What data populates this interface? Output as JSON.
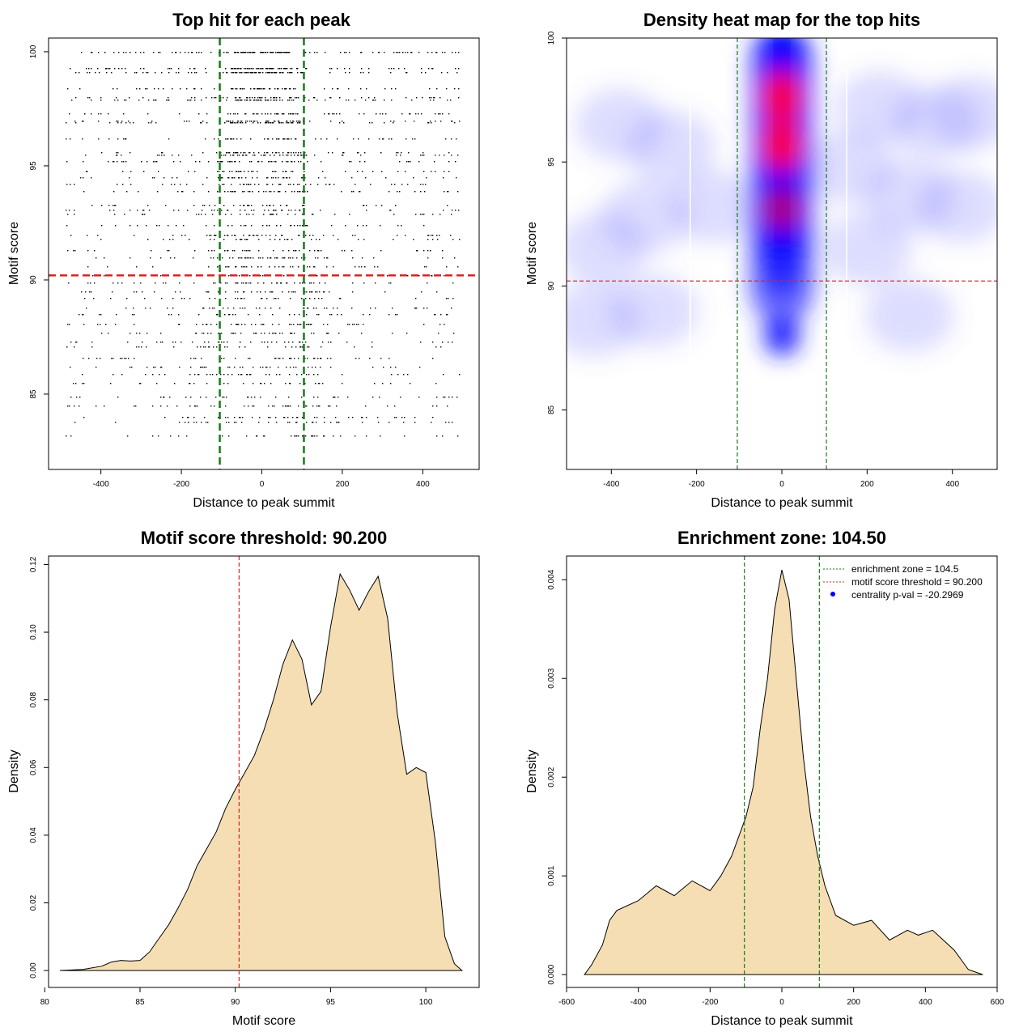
{
  "chart_data": [
    {
      "type": "scatter",
      "title": "Top hit for each peak",
      "xlabel": "Distance to peak summit",
      "ylabel": "Motif score",
      "xlim": [
        -530,
        540
      ],
      "ylim": [
        81.7,
        100.6
      ],
      "xticks": [
        -400,
        -200,
        0,
        200,
        400
      ],
      "yticks": [
        85,
        90,
        95,
        100
      ],
      "vlines": {
        "values": [
          -104.5,
          104.5
        ],
        "color": "#1a7a1a",
        "style": "dashed"
      },
      "hlines": {
        "values": [
          90.2
        ],
        "color": "#e02020",
        "style": "dashed"
      },
      "score_levels": [
        100,
        99.3,
        99.1,
        98.4,
        98.0,
        97.9,
        97.3,
        97.0,
        96.9,
        96.2,
        95.6,
        95.5,
        95.2,
        94.8,
        94.5,
        94.2,
        93.9,
        93.3,
        93.1,
        92.9,
        92.4,
        92.0,
        91.8,
        91.3,
        91.0,
        90.6,
        90.2,
        89.9,
        89.5,
        89.2,
        88.8,
        88.5,
        88.1,
        87.7,
        87.3,
        87.1,
        86.6,
        86.2,
        85.9,
        85.5,
        84.9,
        84.5,
        84.0,
        83.8,
        83.2
      ],
      "distance_range": [
        -490,
        490
      ],
      "grid": false
    },
    {
      "type": "heatmap",
      "title": "Density heat map for the top hits",
      "xlabel": "Distance to peak summit",
      "ylabel": "Motif score",
      "xlim": [
        -505,
        505
      ],
      "ylim": [
        82.6,
        100
      ],
      "xticks": [
        -400,
        -200,
        0,
        200,
        400
      ],
      "yticks": [
        85,
        90,
        95,
        100
      ],
      "colors": [
        "#ffffff",
        "#0000ff",
        "#ff0000"
      ],
      "hotspots": [
        {
          "x": 0,
          "y": 97.6,
          "intensity": 1.0
        },
        {
          "x": 0,
          "y": 95.7,
          "intensity": 1.0
        },
        {
          "x": 0,
          "y": 93.1,
          "intensity": 0.8
        },
        {
          "x": 0,
          "y": 90.5,
          "intensity": 0.55
        },
        {
          "x": 0,
          "y": 88.0,
          "intensity": 0.3
        }
      ],
      "vlines": {
        "values": [
          -104.5,
          104.5
        ],
        "color": "#1a7a1a",
        "style": "dashed"
      },
      "hlines": {
        "values": [
          90.2
        ],
        "color": "#e02020",
        "style": "dashed"
      },
      "grid": false
    },
    {
      "type": "area",
      "title": "Motif score threshold: 90.200",
      "xlabel": "Motif score",
      "ylabel": "Density",
      "xlim": [
        80.2,
        102.8
      ],
      "ylim": [
        -0.005,
        0.1225
      ],
      "xticks": [
        80,
        85,
        90,
        95,
        100
      ],
      "yticks": [
        0.0,
        0.02,
        0.04,
        0.06,
        0.08,
        0.1,
        0.12
      ],
      "ytick_labels": [
        "0.00",
        "0.02",
        "0.04",
        "0.06",
        "0.08",
        "0.10",
        "0.12"
      ],
      "x": [
        80.8,
        82.0,
        83.0,
        83.5,
        84.0,
        84.5,
        85.0,
        85.5,
        86.0,
        86.5,
        87.0,
        87.5,
        88.0,
        88.5,
        89.0,
        89.5,
        90.0,
        90.5,
        91.0,
        91.5,
        92.0,
        92.5,
        93.0,
        93.5,
        94.0,
        94.5,
        95.0,
        95.5,
        96.0,
        96.5,
        97.0,
        97.5,
        98.0,
        98.5,
        99.0,
        99.5,
        100.0,
        100.5,
        101.0,
        101.5,
        101.9
      ],
      "y": [
        0.0,
        0.0003,
        0.0013,
        0.0025,
        0.003,
        0.0028,
        0.003,
        0.0055,
        0.0095,
        0.0135,
        0.0185,
        0.024,
        0.031,
        0.036,
        0.041,
        0.048,
        0.0535,
        0.0585,
        0.0635,
        0.071,
        0.08,
        0.0905,
        0.0977,
        0.092,
        0.0785,
        0.0825,
        0.1015,
        0.1172,
        0.1125,
        0.1065,
        0.112,
        0.1165,
        0.104,
        0.076,
        0.058,
        0.06,
        0.0585,
        0.038,
        0.01,
        0.002,
        0.0
      ],
      "fill": "#f5deb3",
      "vlines": {
        "values": [
          90.2
        ],
        "color": "#e02020",
        "style": "dashed"
      },
      "grid": false
    },
    {
      "type": "area",
      "title": "Enrichment zone: 104.50",
      "xlabel": "Distance to peak summit",
      "ylabel": "Density",
      "xlim": [
        -600,
        600
      ],
      "ylim": [
        -0.00013,
        0.00424
      ],
      "xticks": [
        -600,
        -400,
        -200,
        0,
        200,
        400,
        600
      ],
      "yticks": [
        0.0,
        0.001,
        0.002,
        0.003,
        0.004
      ],
      "ytick_labels": [
        "0.000",
        "0.001",
        "0.002",
        "0.003",
        "0.004"
      ],
      "x": [
        -550,
        -530,
        -500,
        -480,
        -460,
        -400,
        -350,
        -300,
        -250,
        -200,
        -170,
        -140,
        -120,
        -100,
        -80,
        -60,
        -40,
        -20,
        0,
        20,
        40,
        60,
        80,
        100,
        120,
        150,
        200,
        250,
        300,
        350,
        380,
        420,
        450,
        480,
        520,
        560
      ],
      "y": [
        0.0,
        0.0001,
        0.0003,
        0.00055,
        0.00065,
        0.00075,
        0.0009,
        0.0008,
        0.00095,
        0.00085,
        0.001,
        0.0012,
        0.0014,
        0.0016,
        0.0019,
        0.0025,
        0.003,
        0.0037,
        0.0041,
        0.0038,
        0.003,
        0.0022,
        0.0016,
        0.0012,
        0.0009,
        0.0006,
        0.0005,
        0.00055,
        0.00035,
        0.00045,
        0.0004,
        0.00045,
        0.00035,
        0.00025,
        5e-05,
        0.0
      ],
      "fill": "#f5deb3",
      "vlines": {
        "values": [
          -104.5,
          104.5
        ],
        "color": "#1a7a1a",
        "style": "dashed"
      },
      "legend": {
        "position": "top-right",
        "entries": [
          {
            "label": "enrichment zone = 104.5",
            "color": "#1a7a1a",
            "kind": "line"
          },
          {
            "label": "motif score threshold = 90.200",
            "color": "#e02020",
            "kind": "line"
          },
          {
            "label": "centrality p-val = -20.2969",
            "color": "#0000ff",
            "kind": "point"
          }
        ]
      },
      "grid": false
    }
  ]
}
